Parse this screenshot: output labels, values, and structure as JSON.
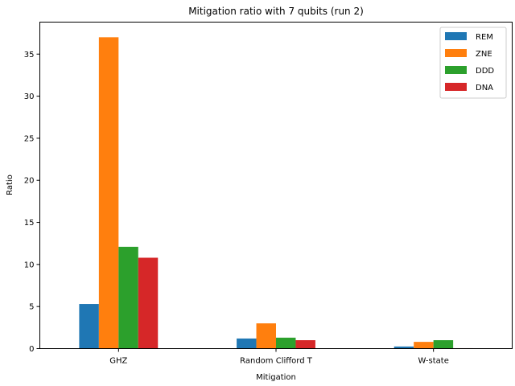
{
  "chart_data": {
    "type": "bar",
    "title": "Mitigation ratio with 7 qubits (run 2)",
    "xlabel": "Mitigation",
    "ylabel": "Ratio",
    "categories": [
      "GHZ",
      "Random Clifford T",
      "W-state"
    ],
    "series": [
      {
        "name": "REM",
        "color": "#1f77b4",
        "values": [
          5.3,
          1.2,
          0.25
        ]
      },
      {
        "name": "ZNE",
        "color": "#ff7f0e",
        "values": [
          37.0,
          3.0,
          0.8
        ]
      },
      {
        "name": "DDD",
        "color": "#2ca02c",
        "values": [
          12.1,
          1.3,
          1.0
        ]
      },
      {
        "name": "DNA",
        "color": "#d62728",
        "values": [
          10.8,
          1.0,
          0.05
        ]
      }
    ],
    "ylim": [
      0,
      38.8
    ],
    "yticks": [
      0,
      5,
      10,
      15,
      20,
      25,
      30,
      35
    ],
    "grid": false,
    "legend_position": "top-right"
  }
}
